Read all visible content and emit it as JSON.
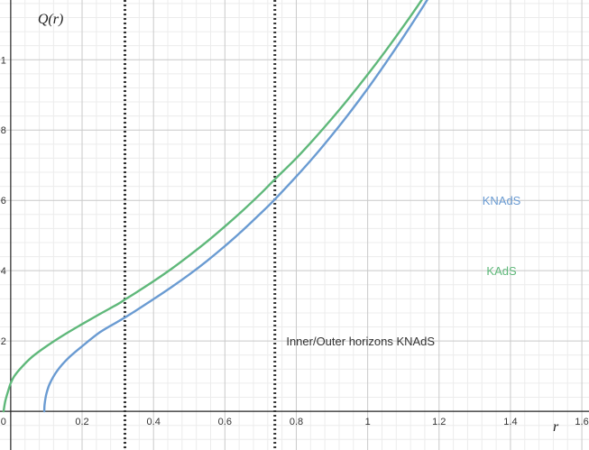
{
  "chart_data": {
    "type": "line",
    "xlabel": "r",
    "ylabel": "Q(r)",
    "xlim": [
      -0.03,
      1.62
    ],
    "ylim": [
      -0.11,
      1.17
    ],
    "grid": true,
    "x_ticks": [
      {
        "value": 0,
        "label": "0"
      },
      {
        "value": 0.2,
        "label": "0.2"
      },
      {
        "value": 0.4,
        "label": "0.4"
      },
      {
        "value": 0.6,
        "label": "0.6"
      },
      {
        "value": 0.8,
        "label": "0.8"
      },
      {
        "value": 1,
        "label": "1"
      },
      {
        "value": 1.2,
        "label": "1.2"
      },
      {
        "value": 1.4,
        "label": "1.4"
      },
      {
        "value": 1.6,
        "label": "1.6"
      }
    ],
    "y_ticks": [
      {
        "value": 0.2,
        "label": "0.2"
      },
      {
        "value": 0.4,
        "label": "0.4"
      },
      {
        "value": 0.6,
        "label": "0.6"
      },
      {
        "value": 0.8,
        "label": "0.8"
      },
      {
        "value": 1,
        "label": "1"
      }
    ],
    "series": [
      {
        "name": "KNAdS",
        "color": "#6a9bd2",
        "x": [
          0.094,
          0.095,
          0.1,
          0.11,
          0.13,
          0.16,
          0.2,
          0.25,
          0.3,
          0.32,
          0.35,
          0.4,
          0.45,
          0.5,
          0.55,
          0.6,
          0.65,
          0.7,
          0.74,
          0.8,
          0.85,
          0.9,
          0.95,
          1.0,
          1.05,
          1.1,
          1.15,
          1.2,
          1.22
        ],
        "y": [
          0.0,
          0.02,
          0.05,
          0.08,
          0.115,
          0.15,
          0.185,
          0.225,
          0.255,
          0.267,
          0.286,
          0.319,
          0.353,
          0.389,
          0.428,
          0.47,
          0.515,
          0.563,
          0.603,
          0.668,
          0.725,
          0.786,
          0.85,
          0.918,
          0.99,
          1.065,
          1.143,
          1.225,
          1.258
        ]
      },
      {
        "name": "KAdS",
        "color": "#5fb87a",
        "x": [
          -0.02,
          -0.015,
          -0.005,
          0.0,
          0.01,
          0.03,
          0.06,
          0.1,
          0.15,
          0.2,
          0.25,
          0.3,
          0.32,
          0.35,
          0.4,
          0.45,
          0.5,
          0.55,
          0.6,
          0.65,
          0.7,
          0.74,
          0.8,
          0.85,
          0.9,
          0.95,
          1.0,
          1.05,
          1.1,
          1.15,
          1.2,
          1.22
        ],
        "y": [
          0.0,
          0.03,
          0.065,
          0.08,
          0.1,
          0.125,
          0.155,
          0.185,
          0.218,
          0.248,
          0.277,
          0.305,
          0.318,
          0.337,
          0.37,
          0.405,
          0.443,
          0.483,
          0.526,
          0.571,
          0.619,
          0.66,
          0.72,
          0.775,
          0.833,
          0.894,
          0.958,
          1.025,
          1.095,
          1.168,
          1.245,
          1.276
        ]
      }
    ],
    "vlines": [
      {
        "x": 0.32,
        "style": "dotted",
        "color": "#333333"
      },
      {
        "x": 0.74,
        "style": "dotted",
        "color": "#333333"
      }
    ],
    "legend": [
      {
        "label": "KNAdS",
        "color": "#6a9bd2",
        "x": 1.375,
        "y": 0.6
      },
      {
        "label": "KAdS",
        "color": "#5fb87a",
        "x": 1.375,
        "y": 0.4
      }
    ],
    "annotations": [
      {
        "text": "Inner/Outer horizons KNAdS",
        "x": 0.98,
        "y": 0.2
      }
    ]
  }
}
